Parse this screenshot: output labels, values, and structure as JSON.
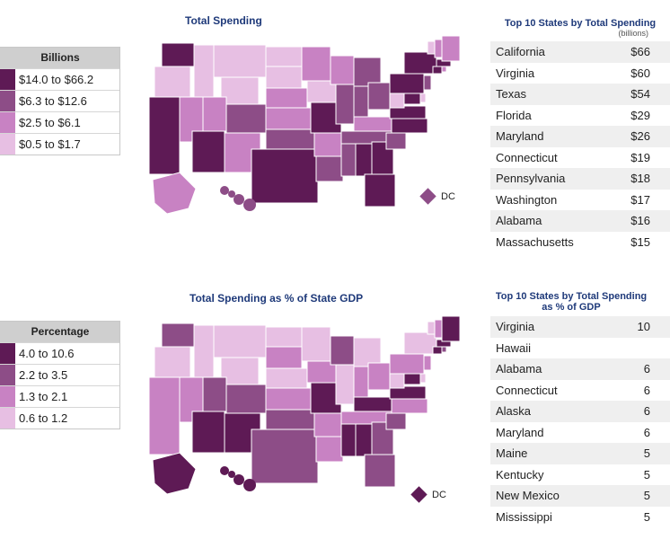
{
  "colors": {
    "level1": "#5e1a55",
    "level2": "#8d4d87",
    "level3": "#c882c3",
    "level4": "#e7bfe3",
    "title": "#1f3a7a"
  },
  "panel1": {
    "map_title": "Total Spending",
    "legend_title": "Billions",
    "legend_items": [
      "$14.0 to $66.2",
      "$6.3 to $12.6",
      "$2.5 to $6.1",
      "$0.5 to $1.7"
    ],
    "dc_label": "DC",
    "dc_level": 2,
    "table_title": "Top 10 States by Total Spending",
    "table_subtitle": "(billions)",
    "table_rows": [
      {
        "state": "California",
        "value": "$66"
      },
      {
        "state": "Virginia",
        "value": "$60"
      },
      {
        "state": "Texas",
        "value": "$54"
      },
      {
        "state": "Florida",
        "value": "$29"
      },
      {
        "state": "Maryland",
        "value": "$26"
      },
      {
        "state": "Connecticut",
        "value": "$19"
      },
      {
        "state": "Pennsylvania",
        "value": "$18"
      },
      {
        "state": "Washington",
        "value": "$17"
      },
      {
        "state": "Alabama",
        "value": "$16"
      },
      {
        "state": "Massachusetts",
        "value": "$15"
      }
    ]
  },
  "panel2": {
    "map_title": "Total Spending as % of State GDP",
    "legend_title": "Percentage",
    "legend_items": [
      "4.0 to 10.6",
      "2.2 to 3.5",
      "1.3 to 2.1",
      "0.6 to 1.2"
    ],
    "dc_label": "DC",
    "dc_level": 1,
    "table_title": "Top 10 States by Total Spending as % of GDP",
    "table_rows": [
      {
        "state": "Virginia",
        "value": "10"
      },
      {
        "state": "Hawaii",
        "value": ""
      },
      {
        "state": "Alabama",
        "value": "6"
      },
      {
        "state": "Connecticut",
        "value": "6"
      },
      {
        "state": "Alaska",
        "value": "6"
      },
      {
        "state": "Maryland",
        "value": "6"
      },
      {
        "state": "Maine",
        "value": "5"
      },
      {
        "state": "Kentucky",
        "value": "5"
      },
      {
        "state": "New Mexico",
        "value": "5"
      },
      {
        "state": "Mississippi",
        "value": "5"
      }
    ]
  }
}
